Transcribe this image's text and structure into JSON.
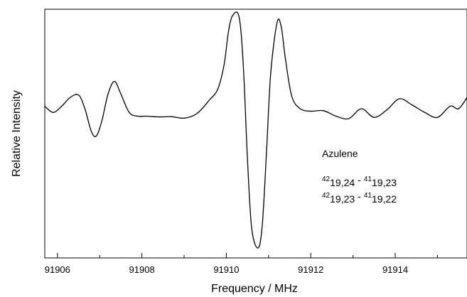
{
  "chart_data": {
    "type": "line",
    "title": "",
    "xlabel": "Frequency / MHz",
    "ylabel": "Relative Intensity",
    "xlim": [
      91905.7,
      91915.7
    ],
    "ylim": [
      0,
      1
    ],
    "x_ticks": [
      91906,
      91908,
      91910,
      91912,
      91914
    ],
    "x_tick_labels": [
      "91906",
      "91908",
      "91910",
      "91912",
      "91914"
    ],
    "y_ticks": [],
    "grid": false,
    "annotations": {
      "molecule": "Azulene",
      "line1": {
        "j_up": "42",
        "sub_up": "19,24",
        "sep": "-",
        "j_lo": "41",
        "sub_lo": "19,23"
      },
      "line2": {
        "j_up": "42",
        "sub_up": "19,23",
        "sep": "-",
        "j_lo": "41",
        "sub_lo": "19,22"
      }
    },
    "series": [
      {
        "color": "#000000",
        "x": [
          91905.7,
          91905.9,
          91906.1,
          91906.3,
          91906.5,
          91906.65,
          91906.8,
          91906.92,
          91907.05,
          91907.2,
          91907.35,
          91907.5,
          91907.7,
          91907.9,
          91908.1,
          91908.4,
          91908.7,
          91909.0,
          91909.3,
          91909.6,
          91909.8,
          91909.95,
          91910.05,
          91910.15,
          91910.3,
          91910.4,
          91910.5,
          91910.6,
          91910.75,
          91910.85,
          91910.95,
          91911.05,
          91911.2,
          91911.3,
          91911.4,
          91911.55,
          91911.75,
          91912.0,
          91912.3,
          91912.6,
          91912.9,
          91913.2,
          91913.5,
          91913.8,
          91914.1,
          91914.4,
          91914.7,
          91915.0,
          91915.3,
          91915.5,
          91915.7
        ],
        "y": [
          0.61,
          0.585,
          0.61,
          0.645,
          0.655,
          0.6,
          0.51,
          0.49,
          0.55,
          0.66,
          0.71,
          0.66,
          0.585,
          0.57,
          0.57,
          0.567,
          0.568,
          0.562,
          0.58,
          0.635,
          0.68,
          0.78,
          0.91,
          0.975,
          0.97,
          0.78,
          0.4,
          0.12,
          0.04,
          0.13,
          0.42,
          0.74,
          0.945,
          0.93,
          0.8,
          0.65,
          0.6,
          0.59,
          0.592,
          0.57,
          0.56,
          0.6,
          0.565,
          0.595,
          0.64,
          0.615,
          0.585,
          0.565,
          0.61,
          0.6,
          0.645
        ]
      }
    ]
  }
}
